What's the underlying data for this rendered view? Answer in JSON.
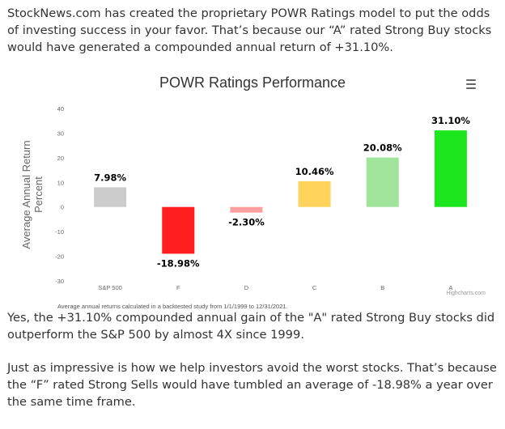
{
  "article": {
    "intro": "StockNews.com has created the proprietary POWR Ratings model to put the odds of investing success in your favor. That’s because our “A” rated Strong Buy stocks would have generated a compounded annual return of +31.10%.",
    "para2": "Yes, the +31.10% compounded annual gain of the \"A\" rated Strong Buy stocks did outperform the S&P 500 by almost 4X since 1999.",
    "para3": "Just as impressive is how we help investors avoid the worst stocks. That’s because the “F” rated Strong Sells would have tumbled an average of -18.98% a year over the same time frame."
  },
  "chart_data": {
    "type": "bar",
    "title": "POWR Ratings Performance",
    "ylabel": "Average Annual Return Percent",
    "xlabel": "",
    "categories": [
      "S&P 500",
      "F",
      "D",
      "C",
      "B",
      "A"
    ],
    "values": [
      7.98,
      -18.98,
      -2.3,
      10.46,
      20.08,
      31.1
    ],
    "data_labels": [
      "7.98%",
      "-18.98%",
      "-2.30%",
      "10.46%",
      "20.08%",
      "31.10%"
    ],
    "colors": [
      "#cccccc",
      "#ff1f1f",
      "#ff9e9e",
      "#ffd35c",
      "#a0e39b",
      "#1ee61e"
    ],
    "ylim": [
      -30,
      40
    ],
    "yticks": [
      -30,
      -20,
      -10,
      0,
      10,
      20,
      30,
      40
    ],
    "grid": false,
    "legend": "none",
    "credits": "Highcharts.com",
    "footnote": "Average annual returns calculated in a backtested study from 1/1/1999 to 12/31/2021.",
    "menu_icon": "hamburger-menu-icon"
  }
}
